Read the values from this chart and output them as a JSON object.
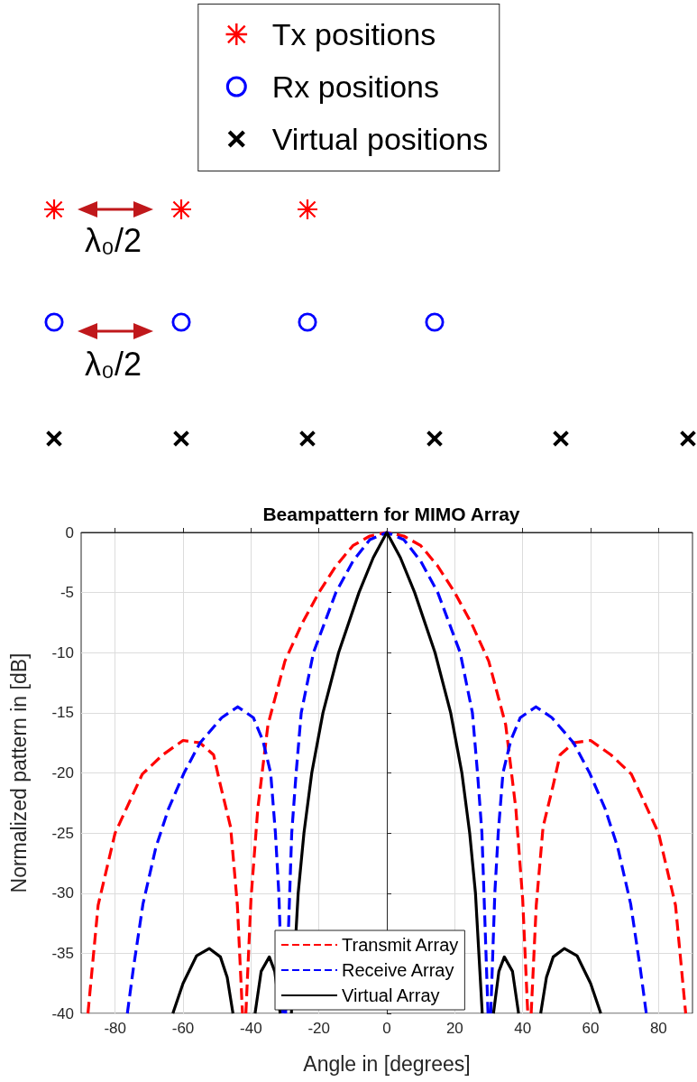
{
  "chart_data": [
    {
      "type": "other",
      "legend": "top",
      "series": [
        {
          "name": "Tx positions",
          "color": "#ff0000",
          "marker": "star"
        },
        {
          "name": "Rx positions",
          "color": "#0000ff",
          "marker": "circle"
        },
        {
          "name": "Virtual positions",
          "color": "#000000",
          "marker": "cross"
        }
      ],
      "annotations": [
        "λ₀/2",
        "λ₀/2"
      ]
    },
    {
      "type": "line",
      "title": "Beampattern for MIMO Array",
      "xlabel": "Angle in [degrees]",
      "ylabel": "Normalized pattern in [dB]",
      "xlim": [
        -90,
        90
      ],
      "xticks": [
        -80,
        -60,
        -40,
        -20,
        0,
        20,
        40,
        60,
        80
      ],
      "ylim": [
        -40,
        0
      ],
      "yticks": [
        -40,
        -35,
        -30,
        -25,
        -20,
        -15,
        -10,
        -5,
        0
      ],
      "grid": true,
      "legend": "bottom",
      "marker": "none",
      "series": [
        {
          "name": "Transmit Array",
          "color": "#ff0000",
          "line_style": "dashed",
          "x": [
            -88,
            -85,
            -80,
            -72,
            -66,
            -60,
            -55,
            -51,
            -49,
            -46,
            -44,
            -42.5,
            -42,
            -41.5,
            -40,
            -38,
            -35,
            -30,
            -25,
            -20,
            -15,
            -10,
            -5,
            0,
            5,
            10,
            15,
            20,
            25,
            30,
            35,
            38,
            40,
            41.5,
            42,
            42.5,
            44,
            46,
            49,
            51,
            55,
            60,
            66,
            72,
            80,
            85,
            88
          ],
          "values": [
            -40,
            -31,
            -25,
            -20.1,
            -18.5,
            -17.3,
            -17.5,
            -18.5,
            -21,
            -24.5,
            -31,
            -40,
            null,
            -40,
            -30.5,
            -23,
            -16,
            -10.7,
            -7.6,
            -5,
            -2.8,
            -1.1,
            -0.3,
            0,
            -0.3,
            -1.1,
            -2.8,
            -5,
            -7.6,
            -10.7,
            -16,
            -23,
            -30.5,
            -40,
            null,
            -40,
            -31,
            -24.5,
            -21,
            -18.5,
            -17.5,
            -17.3,
            -18.5,
            -20.1,
            -25,
            -31,
            -40
          ]
        },
        {
          "name": "Receive Array",
          "color": "#0000ff",
          "line_style": "dashed",
          "x": [
            -76.4,
            -74.6,
            -71.8,
            -68,
            -64.3,
            -59.7,
            -55,
            -48.6,
            -43.9,
            -39.3,
            -36.5,
            -34.2,
            -32.8,
            -31.8,
            -30.6,
            -30.2,
            -29.8,
            -28.6,
            -28,
            -26.7,
            -25.2,
            -21.6,
            -15,
            -10,
            -5,
            0,
            5,
            10,
            15,
            21.6,
            25.2,
            26.7,
            28,
            28.6,
            29.8,
            30.2,
            30.6,
            31.8,
            32.8,
            34.2,
            36.5,
            39.3,
            43.9,
            48.6,
            55,
            59.7,
            64.3,
            68,
            71.8,
            74.6,
            76.4
          ],
          "values": [
            -40,
            -36.2,
            -30.9,
            -26.2,
            -23,
            -20,
            -17.5,
            -15.4,
            -14.5,
            -15.4,
            -17.3,
            -20,
            -25,
            -30,
            -40,
            null,
            -40,
            -30,
            -25,
            -20,
            -15,
            -10,
            -5,
            -2.4,
            -0.6,
            0,
            -0.6,
            -2.4,
            -5,
            -10,
            -15,
            -20,
            -25,
            -30,
            -40,
            null,
            -40,
            -30,
            -25,
            -20,
            -17.3,
            -15.4,
            -14.5,
            -15.4,
            -17.5,
            -20,
            -23,
            -26.2,
            -30.9,
            -36.2,
            -40
          ]
        },
        {
          "name": "Virtual Array",
          "color": "#000000",
          "line_style": "solid",
          "x": [
            -63,
            -60,
            -56,
            -52.3,
            -49,
            -47,
            -45.3,
            -42,
            -38.8,
            -37,
            -34.6,
            -33,
            -31.4,
            -30,
            -28.1,
            -26.1,
            -24.4,
            -22.1,
            -18.8,
            -14.2,
            -8.2,
            -4,
            0,
            4,
            8.2,
            14.2,
            18.8,
            22.1,
            24.4,
            26.1,
            28.1,
            30,
            31.4,
            33,
            34.6,
            37,
            38.8,
            42,
            45.3,
            47,
            49,
            52.3,
            56,
            60,
            63
          ],
          "values": [
            -40,
            -37.5,
            -35.2,
            -34.6,
            -35.3,
            -37,
            -40,
            null,
            -40,
            -36.5,
            -35.3,
            -36.5,
            -40,
            null,
            -40,
            -30,
            -25,
            -20,
            -15,
            -10,
            -5,
            -2.1,
            0,
            -2.1,
            -5,
            -10,
            -15,
            -20,
            -25,
            -30,
            -40,
            null,
            -40,
            -36.5,
            -35.3,
            -36.5,
            -40,
            null,
            -40,
            -37,
            -35.3,
            -34.6,
            -35.2,
            -37.5,
            -40
          ]
        }
      ]
    }
  ]
}
